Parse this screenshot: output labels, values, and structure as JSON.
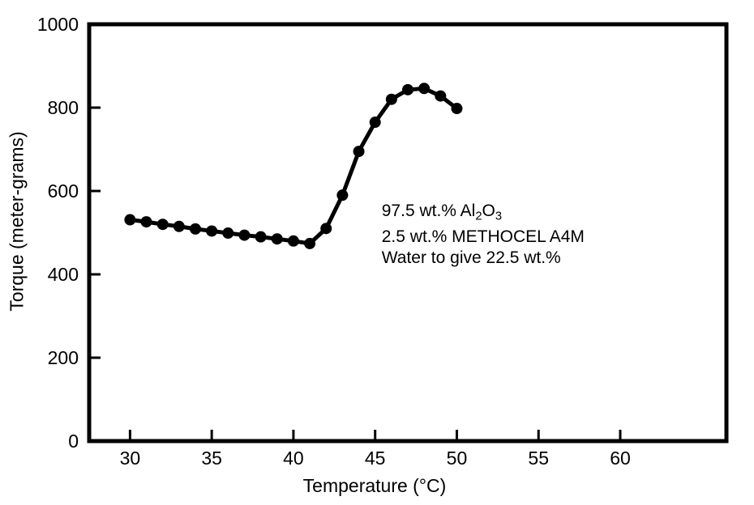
{
  "figure": {
    "background": "#ffffff",
    "ink_color": "#000000"
  },
  "chart_data": {
    "type": "line",
    "title": "",
    "xlabel": "Temperature (°C)",
    "ylabel": "Torque (meter-grams)",
    "xlim": [
      27.5,
      66.5
    ],
    "ylim": [
      0,
      1000
    ],
    "x_ticks": [
      30,
      35,
      40,
      45,
      50,
      55,
      60
    ],
    "y_ticks": [
      0,
      200,
      400,
      600,
      800,
      1000
    ],
    "grid": false,
    "frame": "full-box",
    "tick_direction": "in",
    "legend": null,
    "marker": "filled-circle",
    "color": "#000000",
    "series": [
      {
        "name": "torque-vs-temperature",
        "x": [
          30,
          31,
          32,
          33,
          34,
          35,
          36,
          37,
          38,
          39,
          40,
          41,
          42,
          43,
          44,
          45,
          46,
          47,
          48,
          49,
          50
        ],
        "y": [
          531,
          526,
          520,
          515,
          509,
          504,
          499,
          494,
          490,
          485,
          480,
          474,
          510,
          590,
          695,
          765,
          820,
          843,
          846,
          828,
          798
        ]
      }
    ],
    "annotation": {
      "x": 45.4,
      "y": 577,
      "lines": [
        {
          "parts": [
            {
              "text": "97.5 wt.% Al"
            },
            {
              "text": "2",
              "sub": true
            },
            {
              "text": "O"
            },
            {
              "text": "3",
              "sub": true
            }
          ]
        },
        {
          "parts": [
            {
              "text": "2.5 wt.% METHOCEL A4M"
            }
          ]
        },
        {
          "parts": [
            {
              "text": "Water to give 22.5 wt.%"
            }
          ]
        }
      ]
    }
  }
}
